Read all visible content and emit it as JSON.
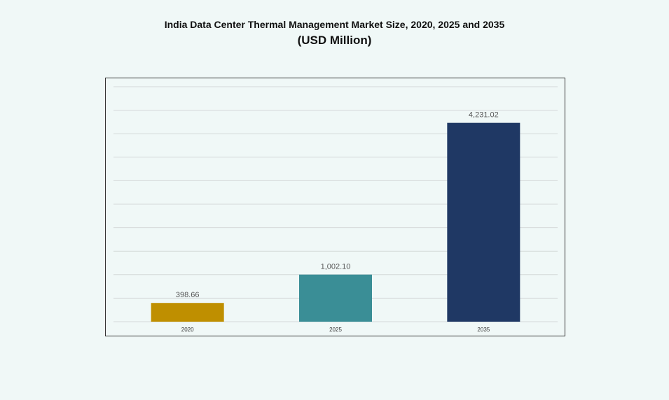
{
  "chart_data": {
    "type": "bar",
    "title": "India Data Center Thermal Management Market Size, 2020, 2025 and 2035",
    "subtitle": "(USD Million)",
    "categories": [
      "2020",
      "2025",
      "2035"
    ],
    "values": [
      398.66,
      1002.1,
      4231.02
    ],
    "value_labels": [
      "398.66",
      "1,002.10",
      "4,231.02"
    ],
    "colors": [
      "#bf8f00",
      "#3a8e96",
      "#1f3864"
    ],
    "xlabel": "",
    "ylabel": "",
    "ylim": [
      0,
      5000
    ],
    "grid": true,
    "legend": "none"
  }
}
